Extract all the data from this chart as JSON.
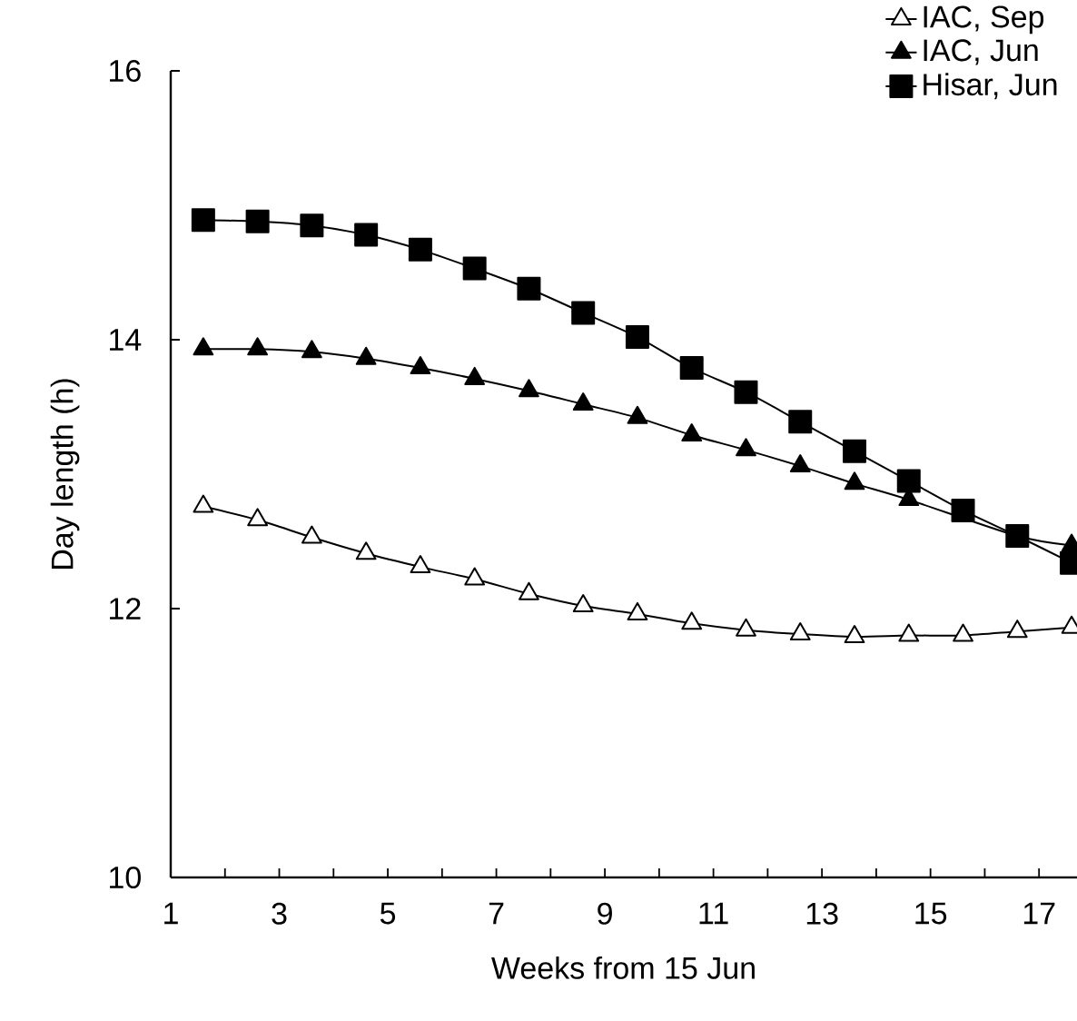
{
  "chart_data": {
    "type": "line",
    "xlabel": "Weeks from 15 Jun",
    "ylabel": "Day length (h)",
    "x": [
      1.6,
      2.6,
      3.6,
      4.6,
      5.6,
      6.6,
      7.6,
      8.6,
      9.6,
      10.6,
      11.6,
      12.6,
      13.6,
      14.6,
      15.6,
      16.6,
      17.6
    ],
    "series": [
      {
        "name": "IAC, Sep",
        "color": "#ffffff",
        "marker": "triangle",
        "values": [
          12.76,
          12.66,
          12.53,
          12.41,
          12.31,
          12.22,
          12.11,
          12.02,
          11.96,
          11.89,
          11.84,
          11.81,
          11.79,
          11.8,
          11.8,
          11.83,
          11.86
        ]
      },
      {
        "name": "IAC, Jun",
        "color": "#000000",
        "marker": "triangle",
        "values": [
          13.93,
          13.93,
          13.91,
          13.86,
          13.79,
          13.71,
          13.62,
          13.52,
          13.42,
          13.29,
          13.18,
          13.06,
          12.93,
          12.81,
          null,
          12.54,
          12.47
        ]
      },
      {
        "name": "Hisar, Jun",
        "color": "#000000",
        "marker": "square",
        "values": [
          14.89,
          14.88,
          14.85,
          14.78,
          14.67,
          14.53,
          14.38,
          14.2,
          14.02,
          13.79,
          13.61,
          13.39,
          13.17,
          12.95,
          12.73,
          12.54,
          12.34
        ]
      }
    ],
    "xlim": [
      1,
      17.7
    ],
    "ylim": [
      10,
      16
    ],
    "xticks": [
      1,
      {
        "value": 2,
        "label": null
      },
      3,
      {
        "value": 4,
        "label": null
      },
      5,
      {
        "value": 6,
        "label": null
      },
      7,
      {
        "value": 8,
        "label": null
      },
      9,
      {
        "value": 10,
        "label": null
      },
      11,
      {
        "value": 12,
        "label": null
      },
      13,
      {
        "value": 14,
        "label": null
      },
      15,
      {
        "value": 16,
        "label": null
      },
      17
    ],
    "yticks": [
      10,
      12,
      14,
      16
    ],
    "grid": false,
    "legend": "top right",
    "line_style": "solid"
  }
}
